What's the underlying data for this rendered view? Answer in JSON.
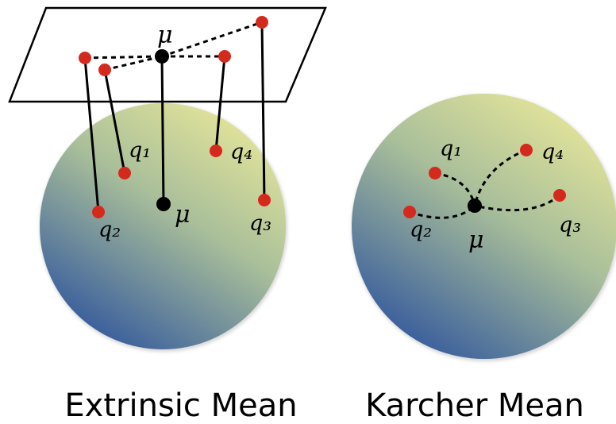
{
  "extrinsic": {
    "title": "Extrinsic Mean",
    "mu_plane": "μ",
    "mu": "μ",
    "q1": "q₁",
    "q2": "q₂",
    "q3": "q₃",
    "q4": "q₄"
  },
  "karcher": {
    "title": "Karcher Mean",
    "mu": "μ",
    "q1": "q₁",
    "q2": "q₂",
    "q3": "q₃",
    "q4": "q₄"
  }
}
